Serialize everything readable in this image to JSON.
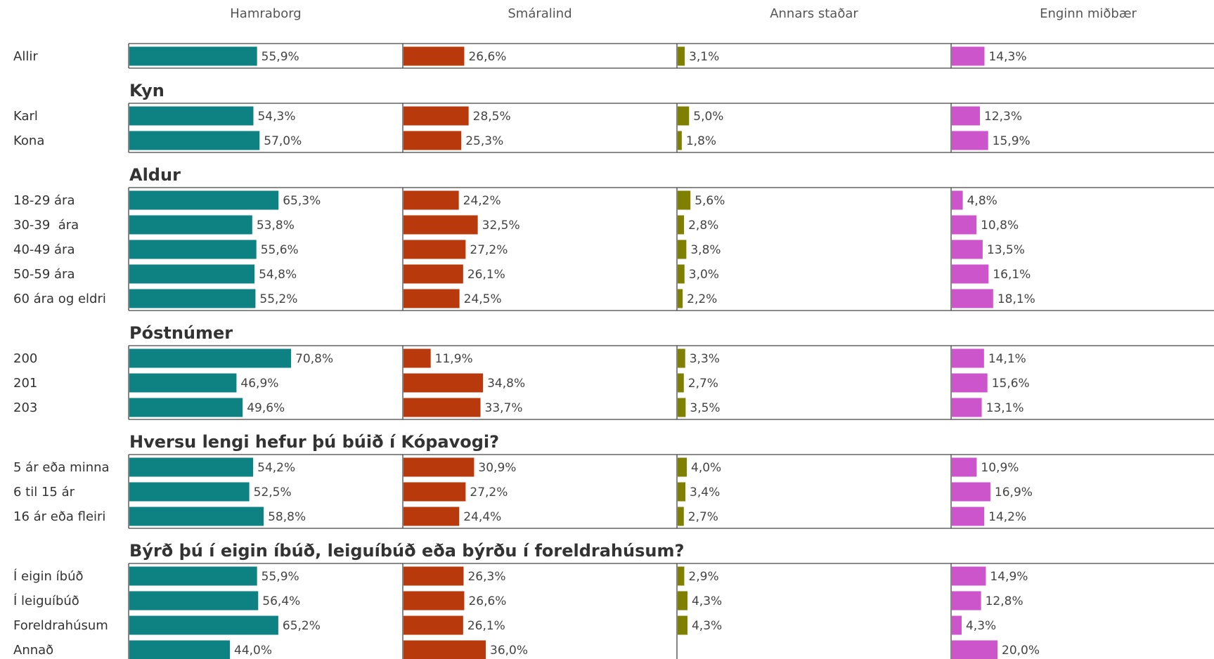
{
  "chart_data": {
    "type": "bar",
    "xlim": [
      0,
      120
    ],
    "series": [
      {
        "name": "Hamraborg",
        "color": "#0e8282"
      },
      {
        "name": "Smáralind",
        "color": "#b8390b"
      },
      {
        "name": "Annars staðar",
        "color": "#7f8000"
      },
      {
        "name": "Enginn miðbær",
        "color": "#cc55cc"
      }
    ],
    "groups": [
      {
        "categories": [
          "Allir"
        ],
        "series": [
          {
            "values": [
              55.9
            ],
            "value_labels": [
              "55,9%"
            ]
          },
          {
            "values": [
              26.6
            ],
            "value_labels": [
              "26,6%"
            ]
          },
          {
            "values": [
              3.1
            ],
            "value_labels": [
              "3,1%"
            ]
          },
          {
            "values": [
              14.3
            ],
            "value_labels": [
              "14,3%"
            ]
          }
        ]
      },
      {
        "title": "Kyn",
        "categories": [
          "Karl",
          "Kona"
        ],
        "series": [
          {
            "values": [
              54.3,
              57.0
            ],
            "value_labels": [
              "54,3%",
              "57,0%"
            ]
          },
          {
            "values": [
              28.5,
              25.3
            ],
            "value_labels": [
              "28,5%",
              "25,3%"
            ]
          },
          {
            "values": [
              5.0,
              1.8
            ],
            "value_labels": [
              "5,0%",
              "1,8%"
            ]
          },
          {
            "values": [
              12.3,
              15.9
            ],
            "value_labels": [
              "12,3%",
              "15,9%"
            ]
          }
        ]
      },
      {
        "title": "Aldur",
        "categories": [
          "18-29 ára",
          "30-39  ára",
          "40-49 ára",
          "50-59 ára",
          "60 ára og eldri"
        ],
        "series": [
          {
            "values": [
              65.3,
              53.8,
              55.6,
              54.8,
              55.2
            ],
            "value_labels": [
              "65,3%",
              "53,8%",
              "55,6%",
              "54,8%",
              "55,2%"
            ]
          },
          {
            "values": [
              24.2,
              32.5,
              27.2,
              26.1,
              24.5
            ],
            "value_labels": [
              "24,2%",
              "32,5%",
              "27,2%",
              "26,1%",
              "24,5%"
            ]
          },
          {
            "values": [
              5.6,
              2.8,
              3.8,
              3.0,
              2.2
            ],
            "value_labels": [
              "5,6%",
              "2,8%",
              "3,8%",
              "3,0%",
              "2,2%"
            ]
          },
          {
            "values": [
              4.8,
              10.8,
              13.5,
              16.1,
              18.1
            ],
            "value_labels": [
              "4,8%",
              "10,8%",
              "13,5%",
              "16,1%",
              "18,1%"
            ]
          }
        ]
      },
      {
        "title": "Póstnúmer",
        "categories": [
          "200",
          "201",
          "203"
        ],
        "series": [
          {
            "values": [
              70.8,
              46.9,
              49.6
            ],
            "value_labels": [
              "70,8%",
              "46,9%",
              "49,6%"
            ]
          },
          {
            "values": [
              11.9,
              34.8,
              33.7
            ],
            "value_labels": [
              "11,9%",
              "34,8%",
              "33,7%"
            ]
          },
          {
            "values": [
              3.3,
              2.7,
              3.5
            ],
            "value_labels": [
              "3,3%",
              "2,7%",
              "3,5%"
            ]
          },
          {
            "values": [
              14.1,
              15.6,
              13.1
            ],
            "value_labels": [
              "14,1%",
              "15,6%",
              "13,1%"
            ]
          }
        ]
      },
      {
        "title": "Hversu lengi hefur þú búið í Kópavogi?",
        "categories": [
          "5 ár eða minna",
          "6 til 15 ár",
          "16 ár eða fleiri"
        ],
        "series": [
          {
            "values": [
              54.2,
              52.5,
              58.8
            ],
            "value_labels": [
              "54,2%",
              "52,5%",
              "58,8%"
            ]
          },
          {
            "values": [
              30.9,
              27.2,
              24.4
            ],
            "value_labels": [
              "30,9%",
              "27,2%",
              "24,4%"
            ]
          },
          {
            "values": [
              4.0,
              3.4,
              2.7
            ],
            "value_labels": [
              "4,0%",
              "3,4%",
              "2,7%"
            ]
          },
          {
            "values": [
              10.9,
              16.9,
              14.2
            ],
            "value_labels": [
              "10,9%",
              "16,9%",
              "14,2%"
            ]
          }
        ]
      },
      {
        "title": "Býrð þú í eigin íbúð, leiguíbúð eða býrðu í foreldrahúsum?",
        "categories": [
          "Í eigin íbúð",
          "Í leiguíbúð",
          "Foreldrahúsum",
          "Annað"
        ],
        "series": [
          {
            "values": [
              55.9,
              56.4,
              65.2,
              44.0
            ],
            "value_labels": [
              "55,9%",
              "56,4%",
              "65,2%",
              "44,0%"
            ]
          },
          {
            "values": [
              26.3,
              26.6,
              26.1,
              36.0
            ],
            "value_labels": [
              "26,3%",
              "26,6%",
              "26,1%",
              "36,0%"
            ]
          },
          {
            "values": [
              2.9,
              4.3,
              4.3,
              null
            ],
            "value_labels": [
              "2,9%",
              "4,3%",
              "4,3%",
              null
            ]
          },
          {
            "values": [
              14.9,
              12.8,
              4.3,
              20.0
            ],
            "value_labels": [
              "14,9%",
              "12,8%",
              "4,3%",
              "20,0%"
            ]
          }
        ]
      }
    ]
  }
}
